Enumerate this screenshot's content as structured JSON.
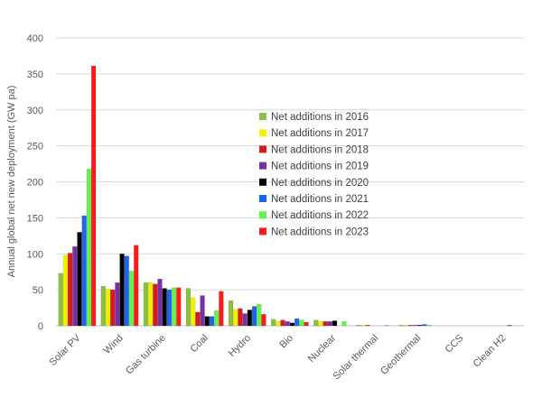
{
  "chart_data": {
    "type": "bar",
    "title": "",
    "xlabel": "",
    "ylabel": "Annual global net new deployment (GW pa)",
    "ylim": [
      0,
      400
    ],
    "yticks": [
      0,
      50,
      100,
      150,
      200,
      250,
      300,
      350,
      400
    ],
    "grid": true,
    "legend_position": "center-right",
    "categories": [
      "Solar PV",
      "Wind",
      "Gas turbine",
      "Coal",
      "Hydro",
      "Bio",
      "Nuclear",
      "Solar thermal",
      "Geothermal",
      "CCS",
      "Clean H2"
    ],
    "series": [
      {
        "name": "Net additions in 2016",
        "color": "#8cbf3f",
        "values": [
          73,
          55,
          60,
          52,
          35,
          9,
          8,
          1,
          1,
          0,
          0
        ]
      },
      {
        "name": "Net additions in 2017",
        "color": "#f2f200",
        "values": [
          98,
          51,
          60,
          39,
          23,
          6,
          6,
          1,
          1,
          0,
          0
        ]
      },
      {
        "name": "Net additions in 2018",
        "color": "#d91a1a",
        "values": [
          101,
          50,
          58,
          19,
          24,
          8,
          6,
          1,
          1,
          0,
          0
        ]
      },
      {
        "name": "Net additions in 2019",
        "color": "#7a2fa6",
        "values": [
          110,
          60,
          65,
          42,
          17,
          6,
          6,
          0,
          1,
          0,
          0
        ]
      },
      {
        "name": "Net additions in 2020",
        "color": "#000000",
        "values": [
          130,
          100,
          52,
          13,
          22,
          4,
          7,
          0,
          1,
          0,
          0
        ]
      },
      {
        "name": "Net additions in 2021",
        "color": "#1a66f2",
        "values": [
          153,
          97,
          50,
          13,
          27,
          10,
          0,
          0,
          2,
          0,
          1
        ]
      },
      {
        "name": "Net additions in 2022",
        "color": "#66f24d",
        "values": [
          218,
          76,
          53,
          21,
          30,
          8,
          6,
          1,
          1,
          0,
          0
        ]
      },
      {
        "name": "Net additions in 2023",
        "color": "#ff1a1a",
        "values": [
          361,
          112,
          53,
          48,
          16,
          5,
          0,
          0,
          0,
          0,
          0
        ]
      }
    ]
  }
}
